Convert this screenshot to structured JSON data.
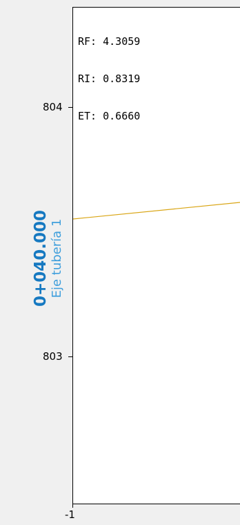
{
  "readout": {
    "rf": "RF: 4.3059",
    "ri": "RI: 0.8319",
    "et": "ET: 0.6660"
  },
  "y_axis": {
    "ticks": [
      "804",
      "803"
    ]
  },
  "x_axis": {
    "ticks": [
      "-1"
    ]
  },
  "section": {
    "station": "0+040.000",
    "axis_name": "Eje tubería 1"
  },
  "colors": {
    "profile_line": "#d9a514",
    "station_text": "#1679c1",
    "axis_name_text": "#3f9fdc",
    "plot_background": "#ffffff",
    "panel_background": "#f0f0f0"
  }
}
